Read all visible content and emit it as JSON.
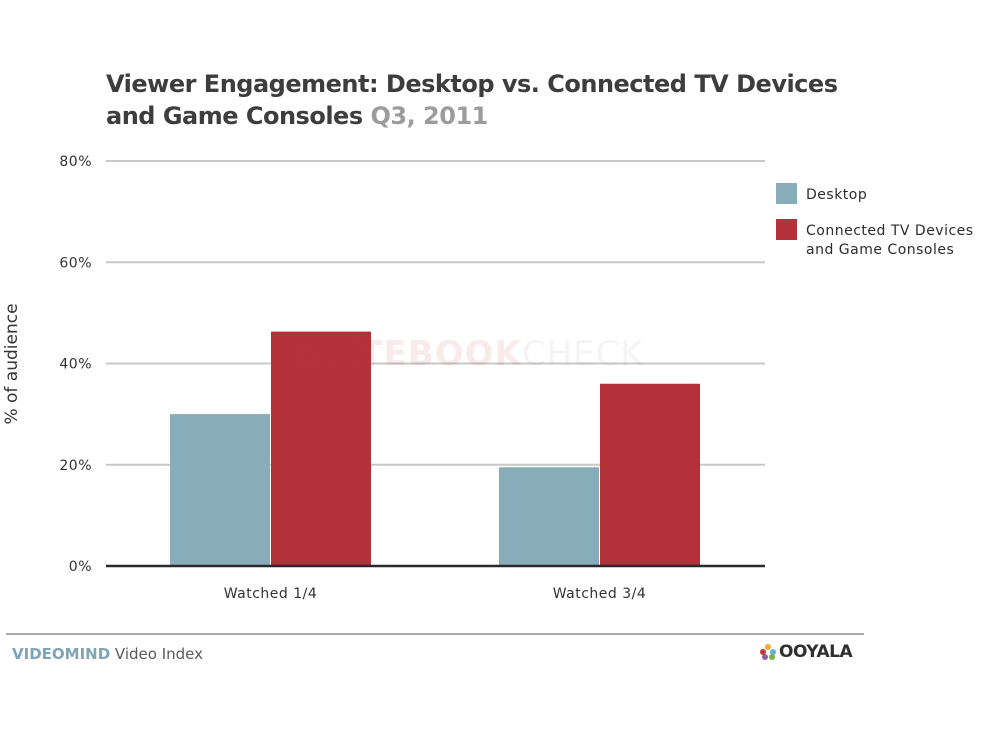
{
  "chart_data": {
    "type": "bar",
    "title": "Viewer Engagement: Desktop vs. Connected TV Devices and Game Consoles",
    "subtitle": "Q3, 2011",
    "xlabel": "",
    "ylabel": "% of audience",
    "categories": [
      "Watched 1/4",
      "Watched 3/4"
    ],
    "series": [
      {
        "name": "Desktop",
        "color": "#86adb9",
        "values": [
          30,
          19.5
        ]
      },
      {
        "name": "Connected TV Devices and Game Consoles",
        "color": "#b3323a",
        "values": [
          46.3,
          36
        ]
      }
    ],
    "ylim": [
      0,
      80
    ],
    "yticks": [
      0,
      20,
      40,
      60,
      80
    ],
    "ytick_labels": [
      "0%",
      "20%",
      "40%",
      "60%",
      "80%"
    ],
    "grid": true,
    "legend_position": "right",
    "legend": [
      "Desktop",
      "Connected TV Devices\nand Game Consoles"
    ]
  },
  "header": {
    "title_main": "Viewer Engagement: Desktop vs. Connected TV Devices and Game Consoles",
    "title_sub": "Q3, 2011"
  },
  "legend": {
    "items": [
      {
        "label_line1": "Desktop",
        "label_line2": "",
        "color": "#86adb9"
      },
      {
        "label_line1": "Connected TV Devices",
        "label_line2": "and Game Consoles",
        "color": "#b3323a"
      }
    ]
  },
  "footer": {
    "brand": "VIDEOMIND",
    "brand_rest": " Video Index",
    "logo": "OOYALA"
  },
  "watermark": {
    "part1": "NOTEBOOK",
    "part2": "CHECK"
  }
}
